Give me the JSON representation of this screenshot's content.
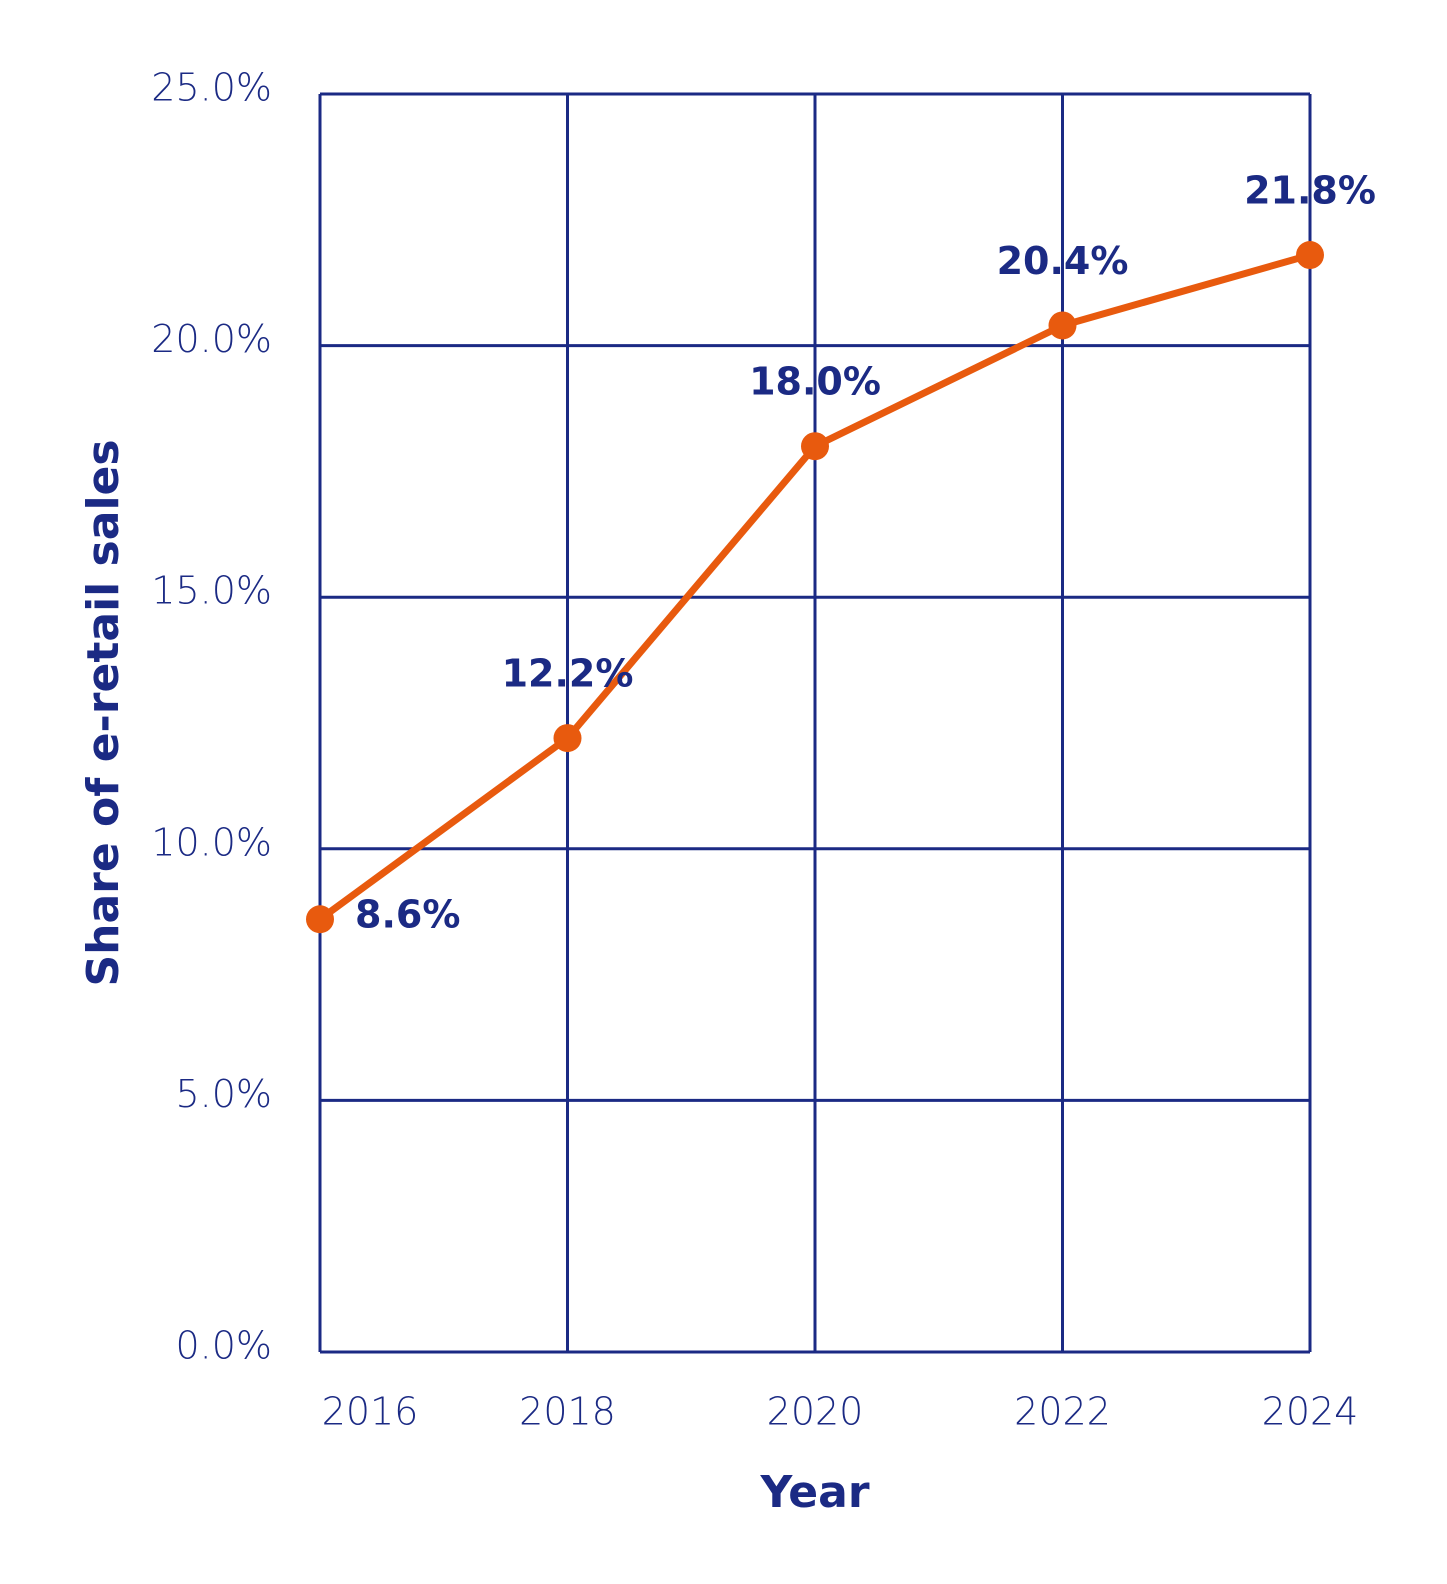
{
  "chart_data": {
    "type": "line",
    "x": [
      2016,
      2018,
      2020,
      2022,
      2024
    ],
    "xlim": [
      2016,
      2024
    ],
    "xticks": [
      2016,
      2018,
      2020,
      2022,
      2024
    ],
    "ylim": [
      0,
      25
    ],
    "yticks": [
      {
        "value": 0,
        "label": "0.0%"
      },
      {
        "value": 5,
        "label": "5.0%"
      },
      {
        "value": 10,
        "label": "10.0%"
      },
      {
        "value": 15,
        "label": "15.0%"
      },
      {
        "value": 20,
        "label": "20.0%"
      },
      {
        "value": 25,
        "label": "25.0%"
      }
    ],
    "x_label": "Year",
    "y_label": "Share of e-retail sales",
    "grid": true,
    "grid_color": "#1b2a84",
    "series": [
      {
        "color": "#e85a0e",
        "values": [
          8.6,
          12.2,
          18.0,
          20.4,
          21.8
        ],
        "value_labels": [
          "8.6%",
          "12.2%",
          "18.0%",
          "20.4%",
          "21.8%"
        ]
      }
    ]
  }
}
